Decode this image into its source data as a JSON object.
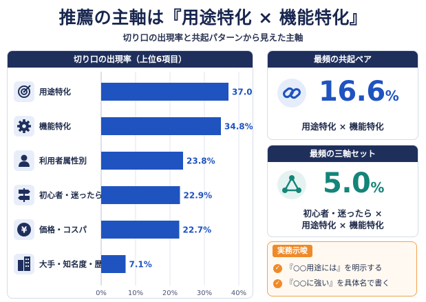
{
  "title": "推薦の主軸は『用途特化 × 機能特化』",
  "subtitle": "切り口の出現率と共起パターンから見えた主軸",
  "chart_panel": {
    "heading": "切り口の出現率（上位6項目）"
  },
  "chart_data": {
    "type": "bar",
    "orientation": "horizontal",
    "categories": [
      "用途特化",
      "機能特化",
      "利用者属性別",
      "初心者・迷ったら",
      "価格・コスパ",
      "大手・知名度・歴史"
    ],
    "values": [
      37.0,
      34.8,
      23.8,
      22.9,
      22.7,
      7.1
    ],
    "value_labels": [
      "37.0%",
      "34.8%",
      "23.8%",
      "22.9%",
      "22.7%",
      "7.1%"
    ],
    "icons": [
      "target-icon",
      "gear-icon",
      "person-icon",
      "signpost-icon",
      "yen-coin-icon",
      "building-icon"
    ],
    "x_ticks": [
      "0%",
      "10%",
      "20%",
      "30%",
      "40%"
    ],
    "xlim": [
      0,
      40
    ],
    "grid": true,
    "bar_color": "#1f53c0",
    "label_color": "#1f53c0"
  },
  "pair": {
    "heading": "最頻の共起ペア",
    "value": "16.6",
    "unit": "%",
    "combo": "用途特化 × 機能特化",
    "icon": "link-icon"
  },
  "triad": {
    "heading": "最頻の三軸セット",
    "value": "5.0",
    "unit": "%",
    "combo_line1": "初心者・迷ったら ×",
    "combo_line2": "用途特化 × 機能特化",
    "icon": "triangle-network-icon"
  },
  "tips": {
    "heading": "実務示唆",
    "items": [
      "『○○用途には』を明示する",
      "『○○に強い』を具体名で書く"
    ],
    "icon": "check-icon"
  },
  "colors": {
    "navy": "#1f2f5c",
    "blue": "#1f53c0",
    "teal": "#148578",
    "orange": "#ef8a2a"
  }
}
